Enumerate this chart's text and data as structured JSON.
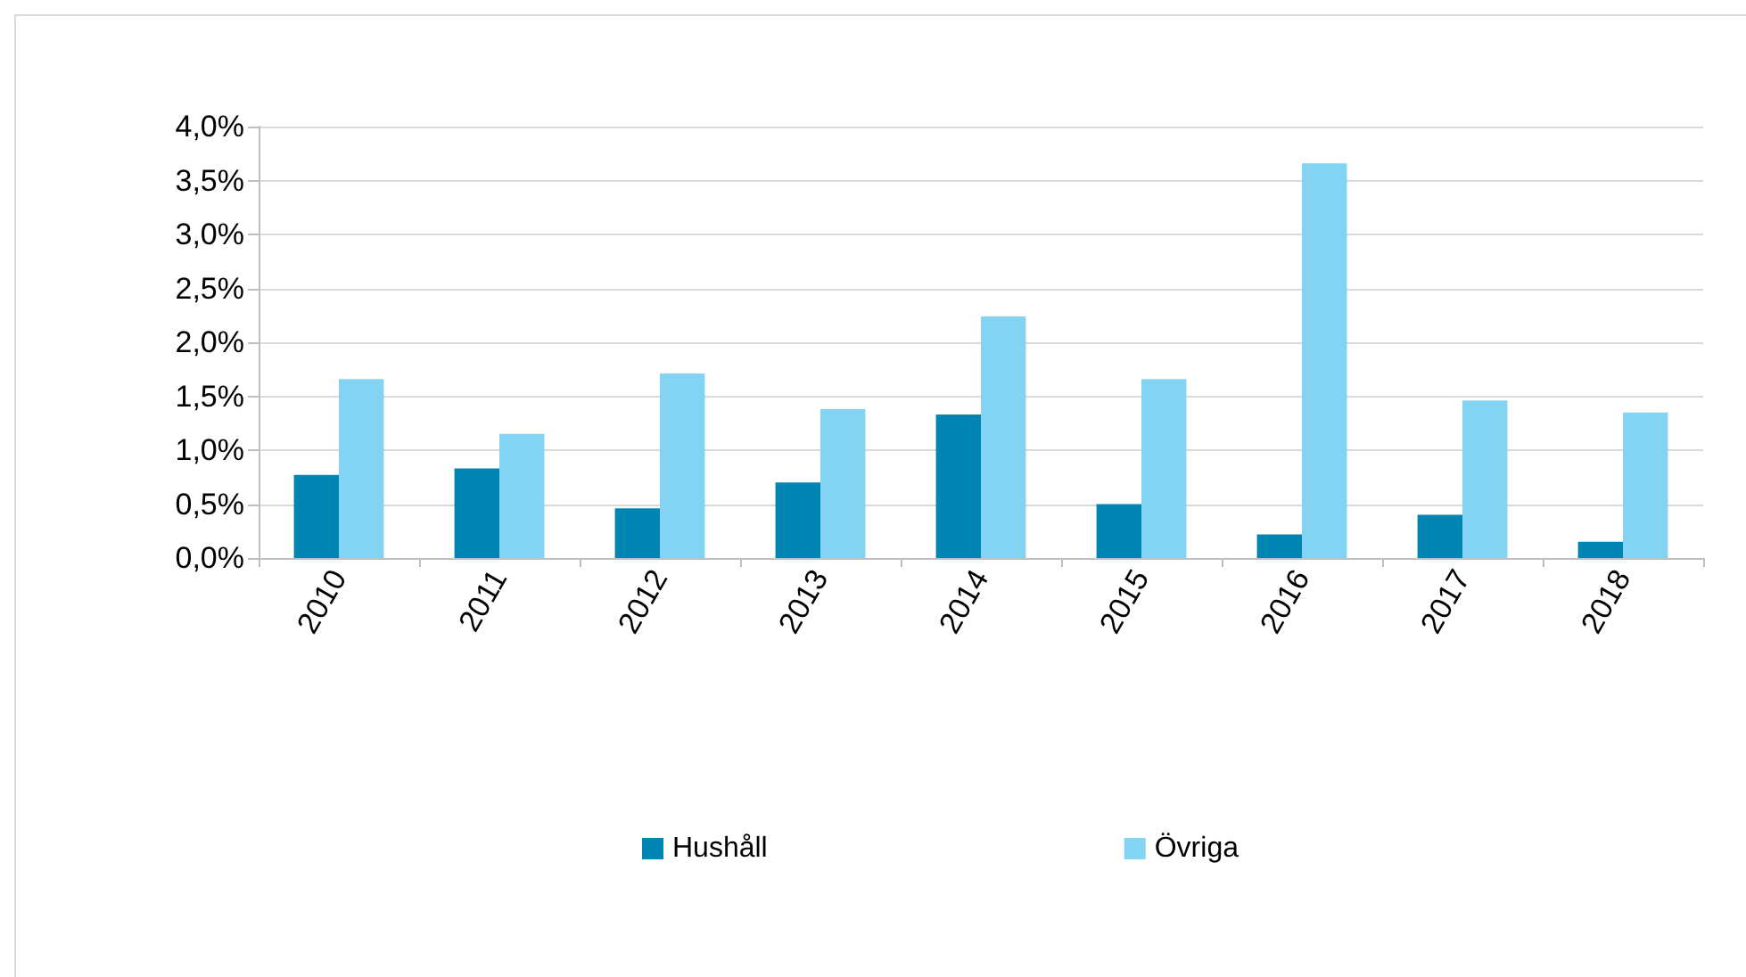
{
  "chart_data": {
    "type": "bar",
    "categories": [
      "2010",
      "2011",
      "2012",
      "2013",
      "2014",
      "2015",
      "2016",
      "2017",
      "2018"
    ],
    "series": [
      {
        "name": "Hushåll",
        "color": "#0085b3",
        "values": [
          0.77,
          0.83,
          0.46,
          0.7,
          1.33,
          0.5,
          0.22,
          0.4,
          0.15
        ]
      },
      {
        "name": "Övriga",
        "color": "#83d3f2",
        "values": [
          1.66,
          1.15,
          1.71,
          1.38,
          2.24,
          1.66,
          3.66,
          1.46,
          1.35
        ]
      }
    ],
    "ylim": [
      0,
      4
    ],
    "yticks": [
      {
        "value": 0,
        "label": "0,0%"
      },
      {
        "value": 0.5,
        "label": "0,5%"
      },
      {
        "value": 1,
        "label": "1,0%"
      },
      {
        "value": 1.5,
        "label": "1,5%"
      },
      {
        "value": 2,
        "label": "2,0%"
      },
      {
        "value": 2.5,
        "label": "2,5%"
      },
      {
        "value": 3,
        "label": "3,0%"
      },
      {
        "value": 3.5,
        "label": "3,5%"
      },
      {
        "value": 4,
        "label": "4,0%"
      }
    ],
    "grid": "y",
    "legend": "bottom"
  }
}
